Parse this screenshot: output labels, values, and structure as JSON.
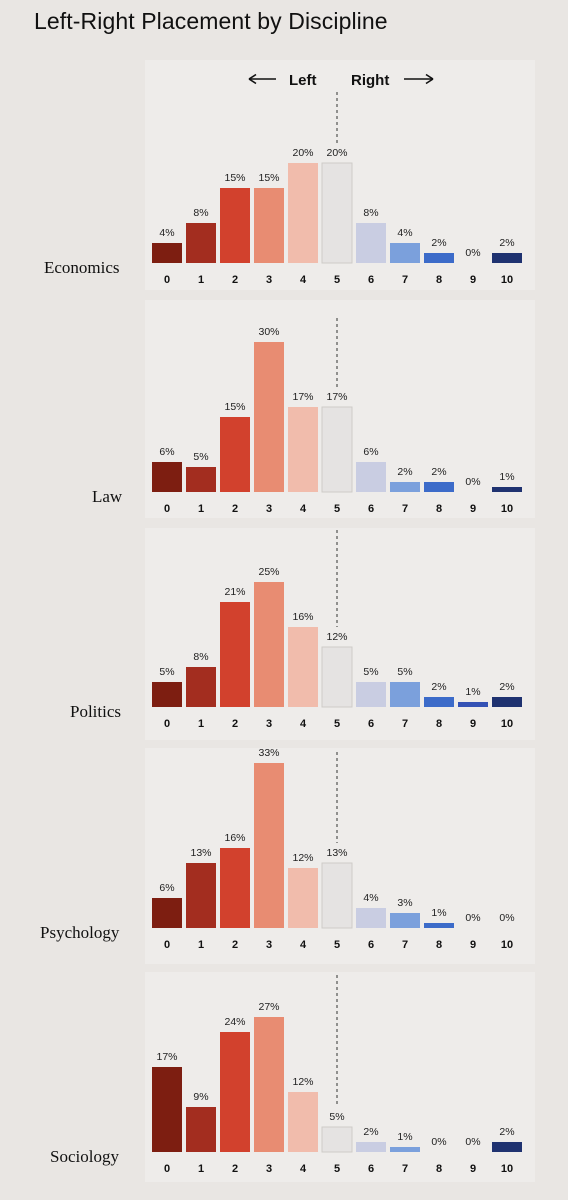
{
  "title": "Left-Right Placement by Discipline",
  "direction": {
    "left": "Left",
    "right": "Right"
  },
  "colors": [
    "#7d1e11",
    "#a32d1f",
    "#d2412d",
    "#e88c72",
    "#f1bcac",
    "#e5e3e2",
    "#c9cde2",
    "#7ba0dc",
    "#3c6bc9",
    "#3452b5",
    "#1f3270"
  ],
  "chart_data": [
    {
      "type": "bar",
      "title": "Economics",
      "categories": [
        "0",
        "1",
        "2",
        "3",
        "4",
        "5",
        "6",
        "7",
        "8",
        "9",
        "10"
      ],
      "values": [
        4,
        8,
        15,
        15,
        20,
        20,
        8,
        4,
        2,
        0,
        2
      ],
      "labels": [
        "4%",
        "8%",
        "15%",
        "15%",
        "20%",
        "20%",
        "8%",
        "4%",
        "2%",
        "0%",
        "2%"
      ]
    },
    {
      "type": "bar",
      "title": "Law",
      "categories": [
        "0",
        "1",
        "2",
        "3",
        "4",
        "5",
        "6",
        "7",
        "8",
        "9",
        "10"
      ],
      "values": [
        6,
        5,
        15,
        30,
        17,
        17,
        6,
        2,
        2,
        0,
        1
      ],
      "labels": [
        "6%",
        "5%",
        "15%",
        "30%",
        "17%",
        "17%",
        "6%",
        "2%",
        "2%",
        "0%",
        "1%"
      ]
    },
    {
      "type": "bar",
      "title": "Politics",
      "categories": [
        "0",
        "1",
        "2",
        "3",
        "4",
        "5",
        "6",
        "7",
        "8",
        "9",
        "10"
      ],
      "values": [
        5,
        8,
        21,
        25,
        16,
        12,
        5,
        5,
        2,
        1,
        2
      ],
      "labels": [
        "5%",
        "8%",
        "21%",
        "25%",
        "16%",
        "12%",
        "5%",
        "5%",
        "2%",
        "1%",
        "2%"
      ]
    },
    {
      "type": "bar",
      "title": "Psychology",
      "categories": [
        "0",
        "1",
        "2",
        "3",
        "4",
        "5",
        "6",
        "7",
        "8",
        "9",
        "10"
      ],
      "values": [
        6,
        13,
        16,
        33,
        12,
        13,
        4,
        3,
        1,
        0,
        0
      ],
      "labels": [
        "6%",
        "13%",
        "16%",
        "33%",
        "12%",
        "13%",
        "4%",
        "3%",
        "1%",
        "0%",
        "0%"
      ]
    },
    {
      "type": "bar",
      "title": "Sociology",
      "categories": [
        "0",
        "1",
        "2",
        "3",
        "4",
        "5",
        "6",
        "7",
        "8",
        "9",
        "10"
      ],
      "values": [
        17,
        9,
        24,
        27,
        12,
        5,
        2,
        1,
        0,
        0,
        2
      ],
      "labels": [
        "17%",
        "9%",
        "24%",
        "27%",
        "12%",
        "5%",
        "2%",
        "1%",
        "0%",
        "0%",
        "2%"
      ]
    }
  ]
}
